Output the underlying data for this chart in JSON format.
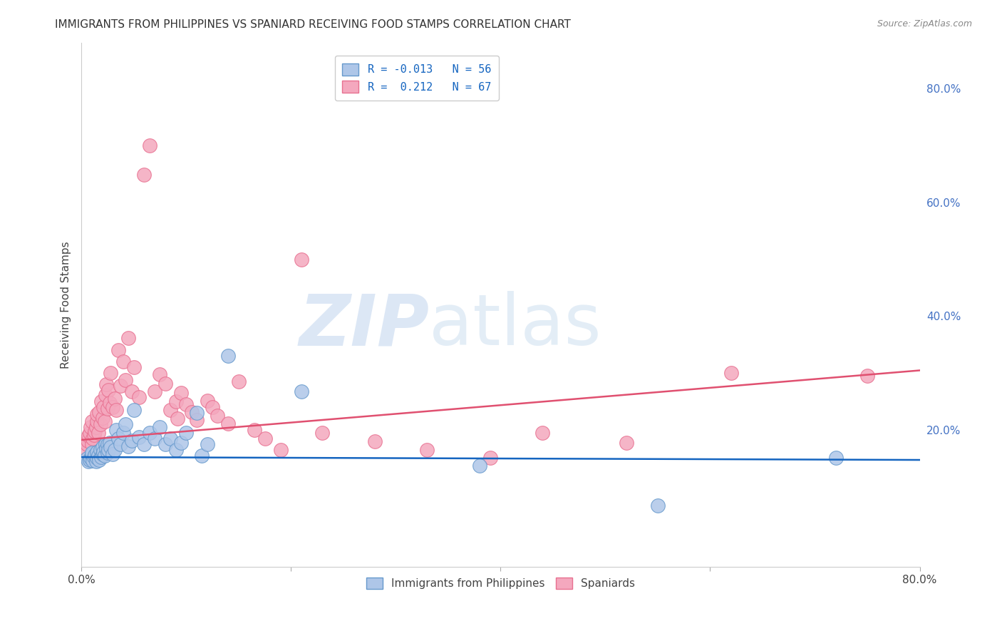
{
  "title": "IMMIGRANTS FROM PHILIPPINES VS SPANIARD RECEIVING FOOD STAMPS CORRELATION CHART",
  "source": "Source: ZipAtlas.com",
  "ylabel": "Receiving Food Stamps",
  "right_yticks": [
    "80.0%",
    "60.0%",
    "40.0%",
    "20.0%"
  ],
  "right_ytick_vals": [
    0.8,
    0.6,
    0.4,
    0.2
  ],
  "legend_entries": [
    {
      "label": "R = -0.013   N = 56",
      "color": "#aec6e8"
    },
    {
      "label": "R =  0.212   N = 67",
      "color": "#f4b8c8"
    }
  ],
  "legend_bottom": [
    "Immigrants from Philippines",
    "Spaniards"
  ],
  "xlim": [
    0.0,
    0.8
  ],
  "ylim": [
    -0.04,
    0.88
  ],
  "blue_line_y0": 0.153,
  "blue_line_y1": 0.148,
  "pink_line_y0": 0.183,
  "pink_line_y1": 0.305,
  "blue_scatter_x": [
    0.005,
    0.007,
    0.008,
    0.009,
    0.01,
    0.01,
    0.01,
    0.011,
    0.012,
    0.013,
    0.014,
    0.015,
    0.015,
    0.016,
    0.017,
    0.018,
    0.019,
    0.02,
    0.02,
    0.021,
    0.022,
    0.023,
    0.024,
    0.025,
    0.025,
    0.026,
    0.027,
    0.028,
    0.03,
    0.032,
    0.033,
    0.035,
    0.037,
    0.04,
    0.042,
    0.045,
    0.048,
    0.05,
    0.055,
    0.06,
    0.065,
    0.07,
    0.075,
    0.08,
    0.085,
    0.09,
    0.095,
    0.1,
    0.11,
    0.115,
    0.12,
    0.14,
    0.21,
    0.38,
    0.55,
    0.72
  ],
  "blue_scatter_y": [
    0.15,
    0.145,
    0.148,
    0.152,
    0.155,
    0.158,
    0.16,
    0.147,
    0.153,
    0.157,
    0.145,
    0.152,
    0.162,
    0.155,
    0.148,
    0.165,
    0.153,
    0.158,
    0.17,
    0.162,
    0.155,
    0.175,
    0.168,
    0.16,
    0.175,
    0.165,
    0.178,
    0.17,
    0.158,
    0.165,
    0.2,
    0.185,
    0.175,
    0.195,
    0.21,
    0.172,
    0.182,
    0.235,
    0.188,
    0.175,
    0.195,
    0.185,
    0.205,
    0.175,
    0.185,
    0.165,
    0.178,
    0.195,
    0.23,
    0.155,
    0.175,
    0.33,
    0.268,
    0.138,
    0.068,
    0.152
  ],
  "pink_scatter_x": [
    0.004,
    0.005,
    0.006,
    0.007,
    0.008,
    0.009,
    0.01,
    0.01,
    0.011,
    0.012,
    0.013,
    0.014,
    0.015,
    0.015,
    0.016,
    0.017,
    0.018,
    0.019,
    0.02,
    0.021,
    0.022,
    0.023,
    0.024,
    0.025,
    0.026,
    0.027,
    0.028,
    0.03,
    0.032,
    0.033,
    0.035,
    0.037,
    0.04,
    0.042,
    0.045,
    0.048,
    0.05,
    0.055,
    0.06,
    0.065,
    0.07,
    0.075,
    0.08,
    0.085,
    0.09,
    0.092,
    0.095,
    0.1,
    0.105,
    0.11,
    0.12,
    0.125,
    0.13,
    0.14,
    0.15,
    0.165,
    0.175,
    0.19,
    0.21,
    0.23,
    0.28,
    0.33,
    0.39,
    0.44,
    0.52,
    0.62,
    0.75
  ],
  "pink_scatter_y": [
    0.168,
    0.175,
    0.182,
    0.19,
    0.195,
    0.205,
    0.175,
    0.215,
    0.185,
    0.192,
    0.198,
    0.205,
    0.215,
    0.228,
    0.195,
    0.232,
    0.21,
    0.25,
    0.222,
    0.24,
    0.215,
    0.262,
    0.28,
    0.238,
    0.27,
    0.248,
    0.3,
    0.24,
    0.255,
    0.235,
    0.34,
    0.278,
    0.32,
    0.288,
    0.362,
    0.268,
    0.31,
    0.258,
    0.648,
    0.7,
    0.268,
    0.298,
    0.282,
    0.235,
    0.25,
    0.22,
    0.265,
    0.245,
    0.232,
    0.218,
    0.252,
    0.24,
    0.225,
    0.212,
    0.285,
    0.2,
    0.185,
    0.165,
    0.5,
    0.195,
    0.18,
    0.165,
    0.152,
    0.195,
    0.178,
    0.3,
    0.295
  ],
  "blue_line_color": "#1565c0",
  "pink_line_color": "#e05070",
  "blue_dot_color": "#aec6e8",
  "pink_dot_color": "#f4a8be",
  "blue_dot_edge": "#6699cc",
  "pink_dot_edge": "#e87090",
  "grid_color": "#d8d8d8",
  "background_color": "#ffffff",
  "title_fontsize": 11,
  "source_fontsize": 9
}
